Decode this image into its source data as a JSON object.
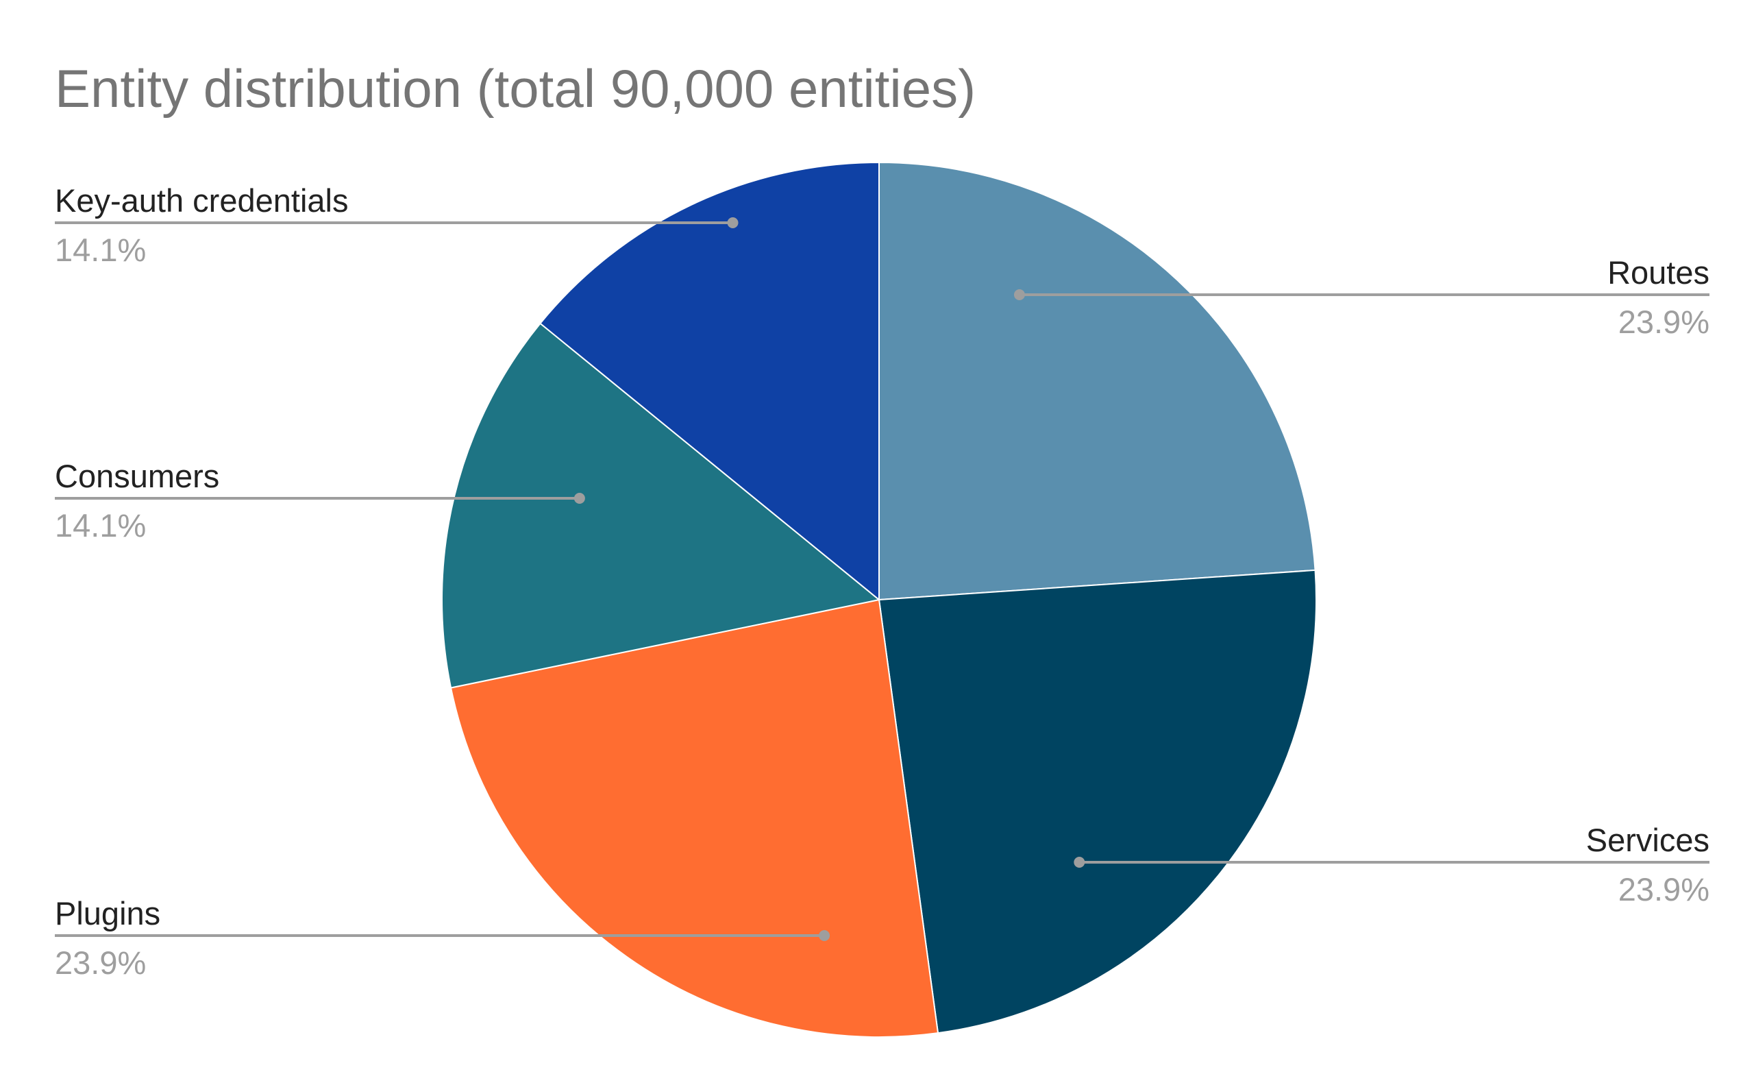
{
  "chart_data": {
    "type": "pie",
    "title": "Entity distribution (total 90,000 entities)",
    "slices": [
      {
        "label": "Routes",
        "value": 23.9,
        "value_label": "23.9%",
        "color": "#5a8fae"
      },
      {
        "label": "Services",
        "value": 23.9,
        "value_label": "23.9%",
        "color": "#004461"
      },
      {
        "label": "Plugins",
        "value": 23.9,
        "value_label": "23.9%",
        "color": "#ff6d31"
      },
      {
        "label": "Consumers",
        "value": 14.1,
        "value_label": "14.1%",
        "color": "#1e7484"
      },
      {
        "label": "Key-auth credentials",
        "value": 14.1,
        "value_label": "14.1%",
        "color": "#0f41a5"
      }
    ],
    "legend": "none",
    "label_style": "leader-lines"
  }
}
